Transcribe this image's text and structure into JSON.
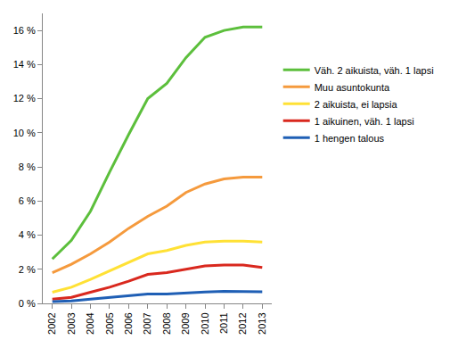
{
  "chart_data": {
    "type": "line",
    "categories": [
      "2002",
      "2003",
      "2004",
      "2005",
      "2006",
      "2007",
      "2008",
      "2009",
      "2010",
      "2011",
      "2012",
      "2013"
    ],
    "series": [
      {
        "name": "Väh. 2 aikuista, väh. 1 lapsi",
        "color": "#5cbf3c",
        "values": [
          2.6,
          3.7,
          5.4,
          7.7,
          9.9,
          12.0,
          12.9,
          14.4,
          15.6,
          16.0,
          16.2,
          16.2
        ]
      },
      {
        "name": "Muu asuntokunta",
        "color": "#f59a3d",
        "values": [
          1.8,
          2.3,
          2.9,
          3.6,
          4.4,
          5.1,
          5.7,
          6.5,
          7.0,
          7.3,
          7.4,
          7.4
        ]
      },
      {
        "name": "2 aikuista, ei lapsia",
        "color": "#ffe135",
        "values": [
          0.65,
          0.95,
          1.4,
          1.9,
          2.4,
          2.9,
          3.1,
          3.4,
          3.6,
          3.65,
          3.65,
          3.6
        ]
      },
      {
        "name": "1 aikuinen, väh. 1 lapsi",
        "color": "#d9281e",
        "values": [
          0.25,
          0.35,
          0.65,
          0.95,
          1.3,
          1.7,
          1.8,
          2.0,
          2.2,
          2.25,
          2.25,
          2.1
        ]
      },
      {
        "name": "1 hengen talous",
        "color": "#1f5fb5",
        "values": [
          0.1,
          0.15,
          0.25,
          0.35,
          0.45,
          0.55,
          0.55,
          0.62,
          0.67,
          0.7,
          0.68,
          0.68
        ]
      }
    ],
    "ylim": [
      0,
      17
    ],
    "yticks": [
      {
        "value": 0,
        "label": "0 %"
      },
      {
        "value": 2,
        "label": "2 %"
      },
      {
        "value": 4,
        "label": "4 %"
      },
      {
        "value": 6,
        "label": "6 %"
      },
      {
        "value": 8,
        "label": "8 %"
      },
      {
        "value": 10,
        "label": "10 %"
      },
      {
        "value": 12,
        "label": "12 %"
      },
      {
        "value": 14,
        "label": "14 %"
      },
      {
        "value": 16,
        "label": "16 %"
      }
    ],
    "grid": false,
    "legend": "right"
  }
}
